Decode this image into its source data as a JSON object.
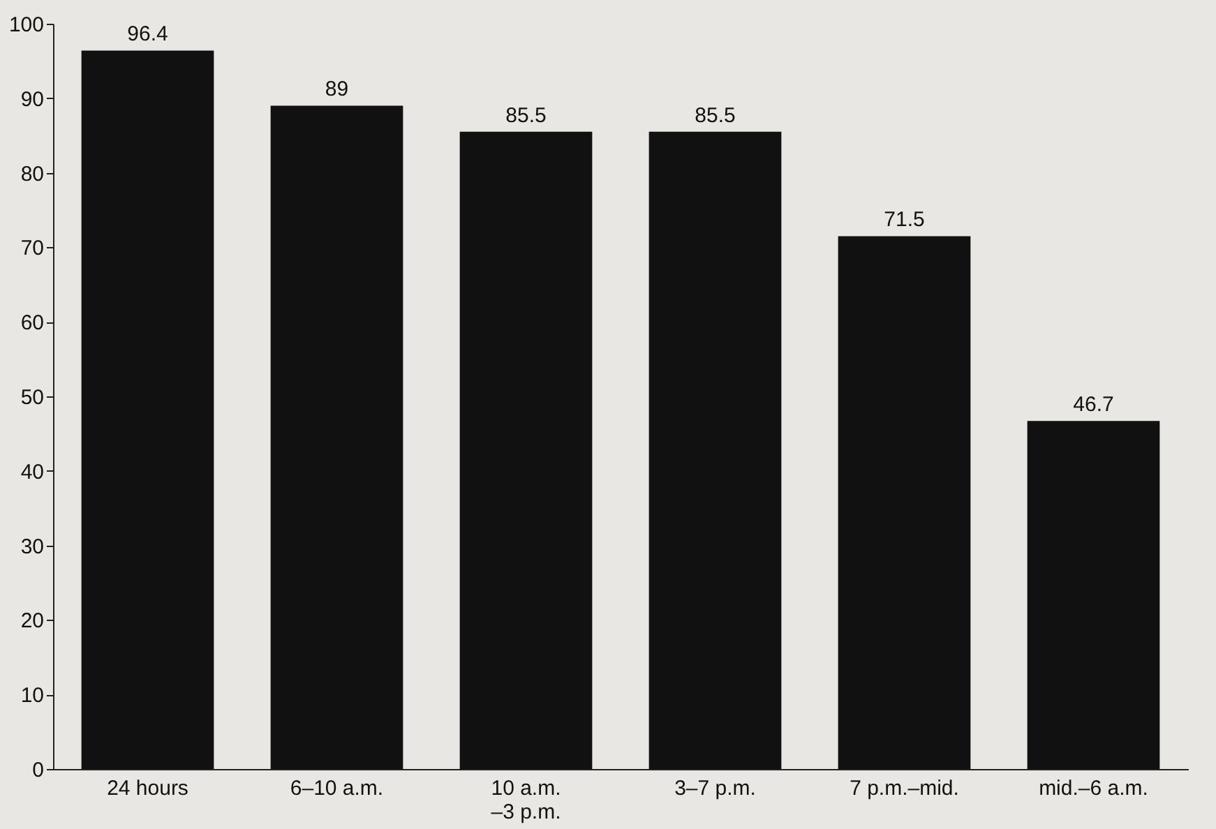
{
  "chart_data": {
    "type": "bar",
    "categories": [
      "24 hours",
      "6–10 a.m.",
      "10 a.m.\n–3 p.m.",
      "3–7 p.m.",
      "7 p.m.–mid.",
      "mid.–6 a.m."
    ],
    "values": [
      96.4,
      89,
      85.5,
      85.5,
      71.5,
      46.7
    ],
    "color": "#111111",
    "ylim": [
      0,
      100
    ],
    "yticks": [
      0,
      10,
      20,
      30,
      40,
      50,
      60,
      70,
      80,
      90,
      100
    ],
    "grid": false,
    "data_labels": true
  }
}
